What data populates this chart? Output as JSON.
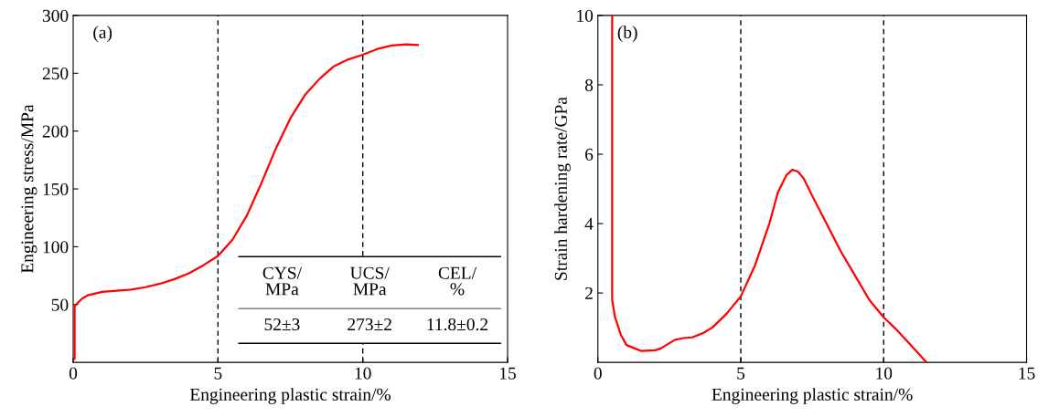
{
  "chart_data": [
    {
      "type": "line",
      "xlabel": "Engineering plastic strain/%",
      "ylabel": "Engineering stress/MPa",
      "xlim": [
        0,
        15
      ],
      "xticks": [
        0,
        5,
        10,
        15
      ],
      "ylim": [
        0,
        300
      ],
      "yticks": [
        50,
        100,
        150,
        200,
        250,
        300
      ],
      "series": [
        {
          "color": "#ff0000",
          "x": [
            0.05,
            0.05,
            0.1,
            0.3,
            0.5,
            1,
            1.5,
            2,
            2.5,
            3,
            3.5,
            4,
            4.5,
            5,
            5.5,
            6,
            6.5,
            7,
            7.5,
            8,
            8.5,
            9,
            9.5,
            10,
            10.5,
            11,
            11.5,
            11.9
          ],
          "values": [
            3,
            48,
            50,
            55,
            58,
            61,
            62,
            63,
            65,
            68,
            72,
            77,
            84,
            92,
            106,
            127,
            155,
            185,
            211,
            231,
            245,
            256,
            262,
            266,
            271,
            274,
            275,
            274.5
          ]
        }
      ],
      "ref_lines": [
        {
          "axis": "x",
          "value": 5,
          "color": "#000000",
          "line_style": "dashed"
        },
        {
          "axis": "x",
          "value": 10,
          "color": "#000000",
          "line_style": "dashed"
        }
      ],
      "annotations": [
        "(a)",
        "CYS/\nMPa",
        "UCS/\nMPa",
        "CEL/\n%",
        "52±3",
        "273±2",
        "11.8±0.2"
      ]
    },
    {
      "type": "line",
      "xlabel": "Engineering plastic strain/%",
      "ylabel": "Strain hardening rate/GPa",
      "xlim": [
        0,
        15
      ],
      "xticks": [
        0,
        5,
        10,
        15
      ],
      "ylim": [
        0,
        10
      ],
      "yticks": [
        2,
        4,
        6,
        8,
        10
      ],
      "series": [
        {
          "color": "#ff0000",
          "x": [
            0.5,
            0.5,
            0.6,
            0.8,
            1,
            1.5,
            2,
            2.2,
            2.7,
            3,
            3.3,
            3.7,
            4,
            4.5,
            5,
            5.5,
            6,
            6.3,
            6.6,
            6.8,
            7,
            7.2,
            7.5,
            8,
            8.5,
            9,
            9.5,
            10,
            10.5,
            11,
            11.5
          ],
          "values": [
            10,
            1.8,
            1.3,
            0.8,
            0.5,
            0.33,
            0.35,
            0.4,
            0.65,
            0.7,
            0.72,
            0.85,
            1.0,
            1.4,
            1.9,
            2.8,
            4.0,
            4.9,
            5.4,
            5.55,
            5.5,
            5.3,
            4.8,
            4.0,
            3.2,
            2.5,
            1.8,
            1.3,
            0.9,
            0.45,
            0.0
          ]
        }
      ],
      "ref_lines": [
        {
          "axis": "x",
          "value": 5,
          "color": "#000000",
          "line_style": "dashed"
        },
        {
          "axis": "x",
          "value": 10,
          "color": "#000000",
          "line_style": "dashed"
        }
      ],
      "annotations": [
        "(b)"
      ]
    }
  ]
}
